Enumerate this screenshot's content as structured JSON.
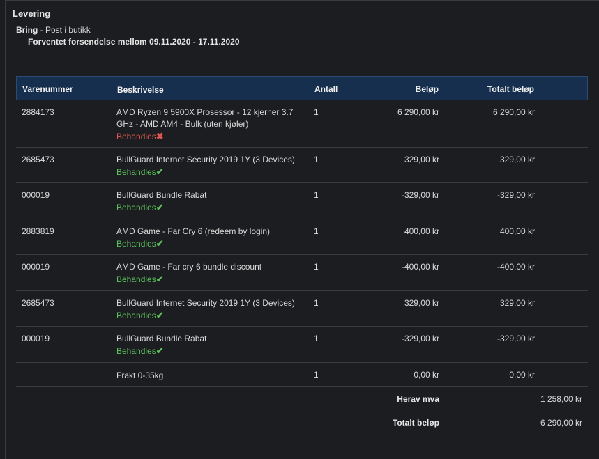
{
  "delivery": {
    "title": "Levering",
    "carrier": "Bring",
    "method": " - Post i butikk",
    "estimate": "Forventet forsendelse mellom 09.11.2020 - 17.11.2020"
  },
  "table": {
    "headers": {
      "item_number": "Varenummer",
      "description": "Beskrivelse",
      "quantity": "Antall",
      "amount": "Beløp",
      "total": "Totalt beløp"
    },
    "rows": [
      {
        "item_number": "2884173",
        "description": "AMD Ryzen 9 5900X Prosessor - 12 kjerner 3.7 GHz - AMD AM4 - Bulk (uten kjøler)",
        "status": "Behandles",
        "status_mark": "✖",
        "quantity": "1",
        "amount": "6 290,00 kr",
        "total": "6 290,00 kr"
      },
      {
        "item_number": "2685473",
        "description": "BullGuard Internet Security 2019 1Y (3 Devices)",
        "status": "Behandles",
        "status_mark": "✔",
        "quantity": "1",
        "amount": "329,00 kr",
        "total": "329,00 kr"
      },
      {
        "item_number": "000019",
        "description": "BullGuard Bundle Rabat",
        "status": "Behandles",
        "status_mark": "✔",
        "quantity": "1",
        "amount": "-329,00 kr",
        "total": "-329,00 kr"
      },
      {
        "item_number": "2883819",
        "description": "AMD Game - Far Cry 6 (redeem by login)",
        "status": "Behandles",
        "status_mark": "✔",
        "quantity": "1",
        "amount": "400,00 kr",
        "total": "400,00 kr"
      },
      {
        "item_number": "000019",
        "description": "AMD Game - Far cry 6 bundle discount",
        "status": "Behandles",
        "status_mark": "✔",
        "quantity": "1",
        "amount": "-400,00 kr",
        "total": "-400,00 kr"
      },
      {
        "item_number": "2685473",
        "description": "BullGuard Internet Security 2019 1Y (3 Devices)",
        "status": "Behandles",
        "status_mark": "✔",
        "quantity": "1",
        "amount": "329,00 kr",
        "total": "329,00 kr"
      },
      {
        "item_number": "000019",
        "description": "BullGuard Bundle Rabat",
        "status": "Behandles",
        "status_mark": "✔",
        "quantity": "1",
        "amount": "-329,00 kr",
        "total": "-329,00 kr"
      }
    ],
    "shipping_row": {
      "item_number": "",
      "description": "Frakt 0-35kg",
      "quantity": "1",
      "amount": "0,00 kr",
      "total": "0,00 kr"
    },
    "summary": {
      "vat_label": "Herav mva",
      "vat_value": "1 258,00 kr",
      "total_label": "Totalt beløp",
      "total_value": "6 290,00 kr"
    }
  },
  "colors": {
    "background": "#1c1d20",
    "header_bg": "#172f4f",
    "status_ok": "#5cc35c",
    "status_fail": "#e0574f"
  }
}
